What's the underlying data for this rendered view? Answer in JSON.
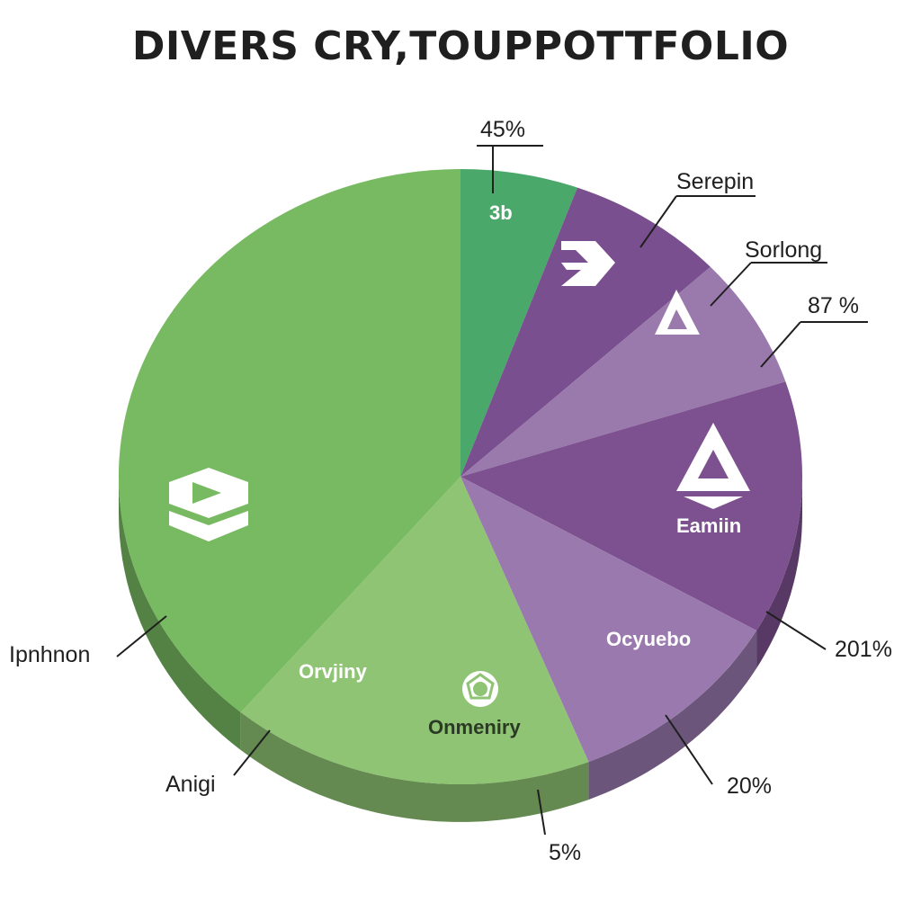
{
  "title": "DIVERS CRY,TOUPPOTTFOLIO",
  "chart_data": {
    "type": "pie",
    "style": "3d",
    "title": "DIVERS CRY,TOUPPOTTFOLIO",
    "slices": [
      {
        "label": "3b",
        "color": "#4aa86a",
        "start": 0,
        "end": 20
      },
      {
        "label": "",
        "color": "#7a4f8f",
        "start": 20,
        "end": 47
      },
      {
        "label": "",
        "color": "#9a7aac",
        "start": 47,
        "end": 72
      },
      {
        "label": "Eamiin",
        "color": "#7d5190",
        "start": 72,
        "end": 120
      },
      {
        "label": "Ocyuebo",
        "color": "#9a7aae",
        "start": 120,
        "end": 158
      },
      {
        "label": "Onmeniry",
        "color": "#8fc474",
        "start": 158,
        "end": 220
      },
      {
        "label": "Orvjiny",
        "color": "#8fc474",
        "start": 158,
        "end": 220
      },
      {
        "label": "",
        "color": "#78ba62",
        "start": 220,
        "end": 360
      }
    ],
    "callouts": [
      "45%",
      "Serepin",
      "Sorlong",
      "87 %",
      "201%",
      "20%",
      "5%",
      "Anigi",
      "Ipnhnon"
    ],
    "icons": [
      "chevron-logo-icon",
      "triangle-logo-icon",
      "triangle-logo-icon",
      "hexagon-logo-icon",
      "hexagon-lens-icon"
    ]
  }
}
